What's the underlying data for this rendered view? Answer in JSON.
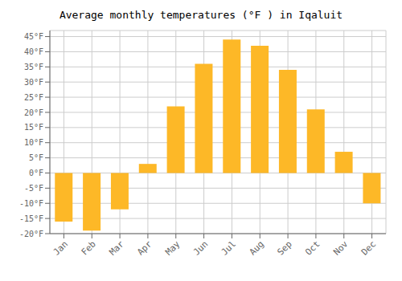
{
  "chart_data": {
    "type": "bar",
    "title": "Average monthly temperatures (°F ) in Iqaluit",
    "categories": [
      "Jan",
      "Feb",
      "Mar",
      "Apr",
      "May",
      "Jun",
      "Jul",
      "Aug",
      "Sep",
      "Oct",
      "Nov",
      "Dec"
    ],
    "values": [
      -16,
      -19,
      -12,
      3,
      22,
      36,
      44,
      42,
      34,
      21,
      7,
      -10
    ],
    "color": "#FDB827",
    "ylim": [
      -20,
      47
    ],
    "yticks": [
      {
        "value": -20,
        "label": "-20°F"
      },
      {
        "value": -15,
        "label": "-15°F"
      },
      {
        "value": -10,
        "label": "-10°F"
      },
      {
        "value": -5,
        "label": "-5°F"
      },
      {
        "value": 0,
        "label": "0°F"
      },
      {
        "value": 5,
        "label": "5°F"
      },
      {
        "value": 10,
        "label": "10°F"
      },
      {
        "value": 15,
        "label": "15°F"
      },
      {
        "value": 20,
        "label": "20°F"
      },
      {
        "value": 25,
        "label": "25°F"
      },
      {
        "value": 30,
        "label": "30°F"
      },
      {
        "value": 35,
        "label": "35°F"
      },
      {
        "value": 40,
        "label": "40°F"
      },
      {
        "value": 45,
        "label": "45°F"
      }
    ],
    "grid": true
  }
}
